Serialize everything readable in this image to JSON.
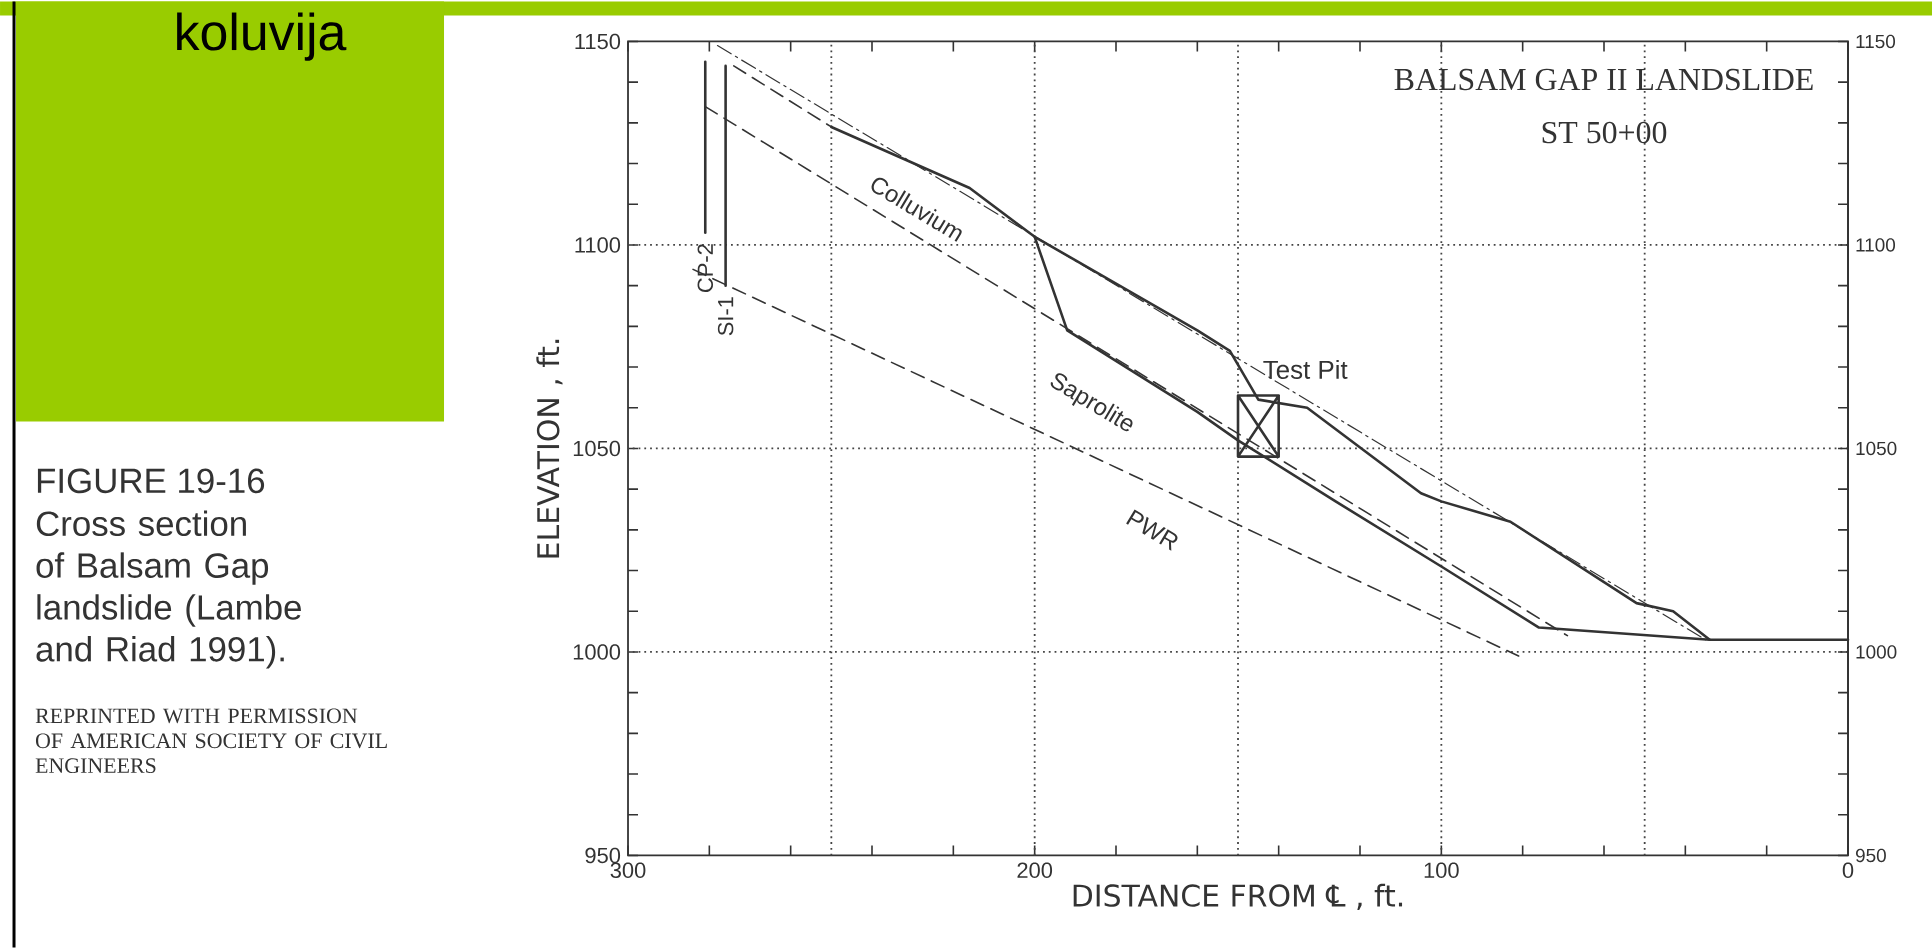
{
  "chart_data": {
    "type": "line",
    "title": "BALSAM GAP II LANDSLIDE",
    "subtitle": "ST 50+00",
    "xlabel": "DISTANCE FROM ℄ , ft.",
    "ylabel": "ELEVATION , ft.",
    "xlim": [
      300,
      0
    ],
    "xticks": [
      300,
      {
        "value": 280,
        "label": null
      },
      {
        "value": 260,
        "label": null
      },
      {
        "value": 240,
        "label": null
      },
      {
        "value": 220,
        "label": null
      },
      200,
      {
        "value": 180,
        "label": null
      },
      {
        "value": 160,
        "label": null
      },
      {
        "value": 140,
        "label": null
      },
      {
        "value": 120,
        "label": null
      },
      100,
      {
        "value": 80,
        "label": null
      },
      {
        "value": 60,
        "label": null
      },
      {
        "value": 40,
        "label": null
      },
      {
        "value": 20,
        "label": null
      },
      0
    ],
    "ylim": [
      950,
      1150
    ],
    "yticks": [
      950,
      {
        "value": 960,
        "label": null
      },
      {
        "value": 970,
        "label": null
      },
      {
        "value": 980,
        "label": null
      },
      {
        "value": 990,
        "label": null
      },
      1000,
      {
        "value": 1010,
        "label": null
      },
      {
        "value": 1020,
        "label": null
      },
      {
        "value": 1030,
        "label": null
      },
      {
        "value": 1040,
        "label": null
      },
      1050,
      {
        "value": 1060,
        "label": null
      },
      {
        "value": 1070,
        "label": null
      },
      {
        "value": 1080,
        "label": null
      },
      {
        "value": 1090,
        "label": null
      },
      1100,
      {
        "value": 1110,
        "label": null
      },
      {
        "value": 1120,
        "label": null
      },
      {
        "value": 1130,
        "label": null
      },
      {
        "value": 1140,
        "label": null
      },
      1150
    ],
    "y2lim": [
      950,
      1150
    ],
    "y2ticks": [
      950,
      {
        "value": 960,
        "label": null
      },
      {
        "value": 970,
        "label": null
      },
      {
        "value": 980,
        "label": null
      },
      {
        "value": 990,
        "label": null
      },
      1000,
      {
        "value": 1010,
        "label": null
      },
      {
        "value": 1020,
        "label": null
      },
      {
        "value": 1030,
        "label": null
      },
      {
        "value": 1040,
        "label": null
      },
      1050,
      {
        "value": 1060,
        "label": null
      },
      {
        "value": 1070,
        "label": null
      },
      {
        "value": 1080,
        "label": null
      },
      {
        "value": 1090,
        "label": null
      },
      1100,
      {
        "value": 1110,
        "label": null
      },
      {
        "value": 1120,
        "label": null
      },
      {
        "value": 1130,
        "label": null
      },
      {
        "value": 1140,
        "label": null
      },
      1150
    ],
    "ref_lines": [
      {
        "axis": "x",
        "value": 250,
        "color": "#444444",
        "line_style": "dotted"
      },
      {
        "axis": "x",
        "value": 200,
        "color": "#444444",
        "line_style": "dotted"
      },
      {
        "axis": "x",
        "value": 150,
        "color": "#444444",
        "line_style": "dotted"
      },
      {
        "axis": "x",
        "value": 100,
        "color": "#444444",
        "line_style": "dotted"
      },
      {
        "axis": "x",
        "value": 50,
        "color": "#444444",
        "line_style": "dotted"
      },
      {
        "axis": "y",
        "value": 1100,
        "color": "#444444",
        "line_style": "dotted"
      },
      {
        "axis": "y",
        "value": 1050,
        "color": "#444444",
        "line_style": "dotted"
      },
      {
        "axis": "y",
        "value": 1000,
        "color": "#444444",
        "line_style": "dotted"
      }
    ],
    "series": [
      {
        "color": "#333333",
        "line_style": "solid",
        "x": [
          250,
          216,
          200,
          160,
          152,
          145,
          133,
          105,
          100,
          83,
          52,
          43,
          34,
          0
        ],
        "values": [
          1129,
          1114,
          1102,
          1079,
          1074,
          1062,
          1060,
          1039,
          1037,
          1032,
          1012,
          1010,
          1003,
          1003
        ]
      },
      {
        "color": "#333333",
        "line_style": "dashed",
        "x": [
          274,
          250
        ],
        "values": [
          1144,
          1129
        ]
      },
      {
        "color": "#333333",
        "line_style": "solid",
        "x": [
          200,
          192,
          160,
          150,
          126,
          100,
          76,
          34
        ],
        "values": [
          1102,
          1079,
          1059,
          1052,
          1037,
          1021,
          1006,
          1003
        ]
      },
      {
        "color": "#333333",
        "line_style": "dashdot",
        "x": [
          278,
          35
        ],
        "values": [
          1149,
          1003
        ]
      },
      {
        "color": "#333333",
        "line_style": "dashed",
        "x": [
          281,
          69
        ],
        "values": [
          1134,
          1004
        ]
      },
      {
        "color": "#333333",
        "line_style": "dashed",
        "x": [
          284,
          81
        ],
        "values": [
          1094,
          999
        ]
      },
      {
        "name": "CP-2",
        "color": "#333333",
        "line_style": "solid",
        "x": [
          281,
          281
        ],
        "values": [
          1145,
          1103
        ]
      },
      {
        "name": "SI-1",
        "color": "#333333",
        "line_style": "solid",
        "x": [
          276,
          276
        ],
        "values": [
          1144,
          1090
        ]
      },
      {
        "name": "Test Pit",
        "color": "#333333",
        "line_style": "solid",
        "x": [
          150,
          150,
          140,
          140,
          150,
          140,
          150,
          140
        ],
        "values": [
          1048,
          1063,
          1063,
          1048,
          1048,
          1063,
          1063,
          1048
        ]
      }
    ],
    "annotations": [
      "koluvija",
      "FIGURE 19-16",
      "Cross section of Balsam Gap landslide (Lambe and Riad 1991).",
      "REPRINTED WITH PERMISSION OF AMERICAN SOCIETY OF CIVIL ENGINEERS",
      "Colluvium",
      "Saprolite",
      "PWR"
    ]
  }
}
